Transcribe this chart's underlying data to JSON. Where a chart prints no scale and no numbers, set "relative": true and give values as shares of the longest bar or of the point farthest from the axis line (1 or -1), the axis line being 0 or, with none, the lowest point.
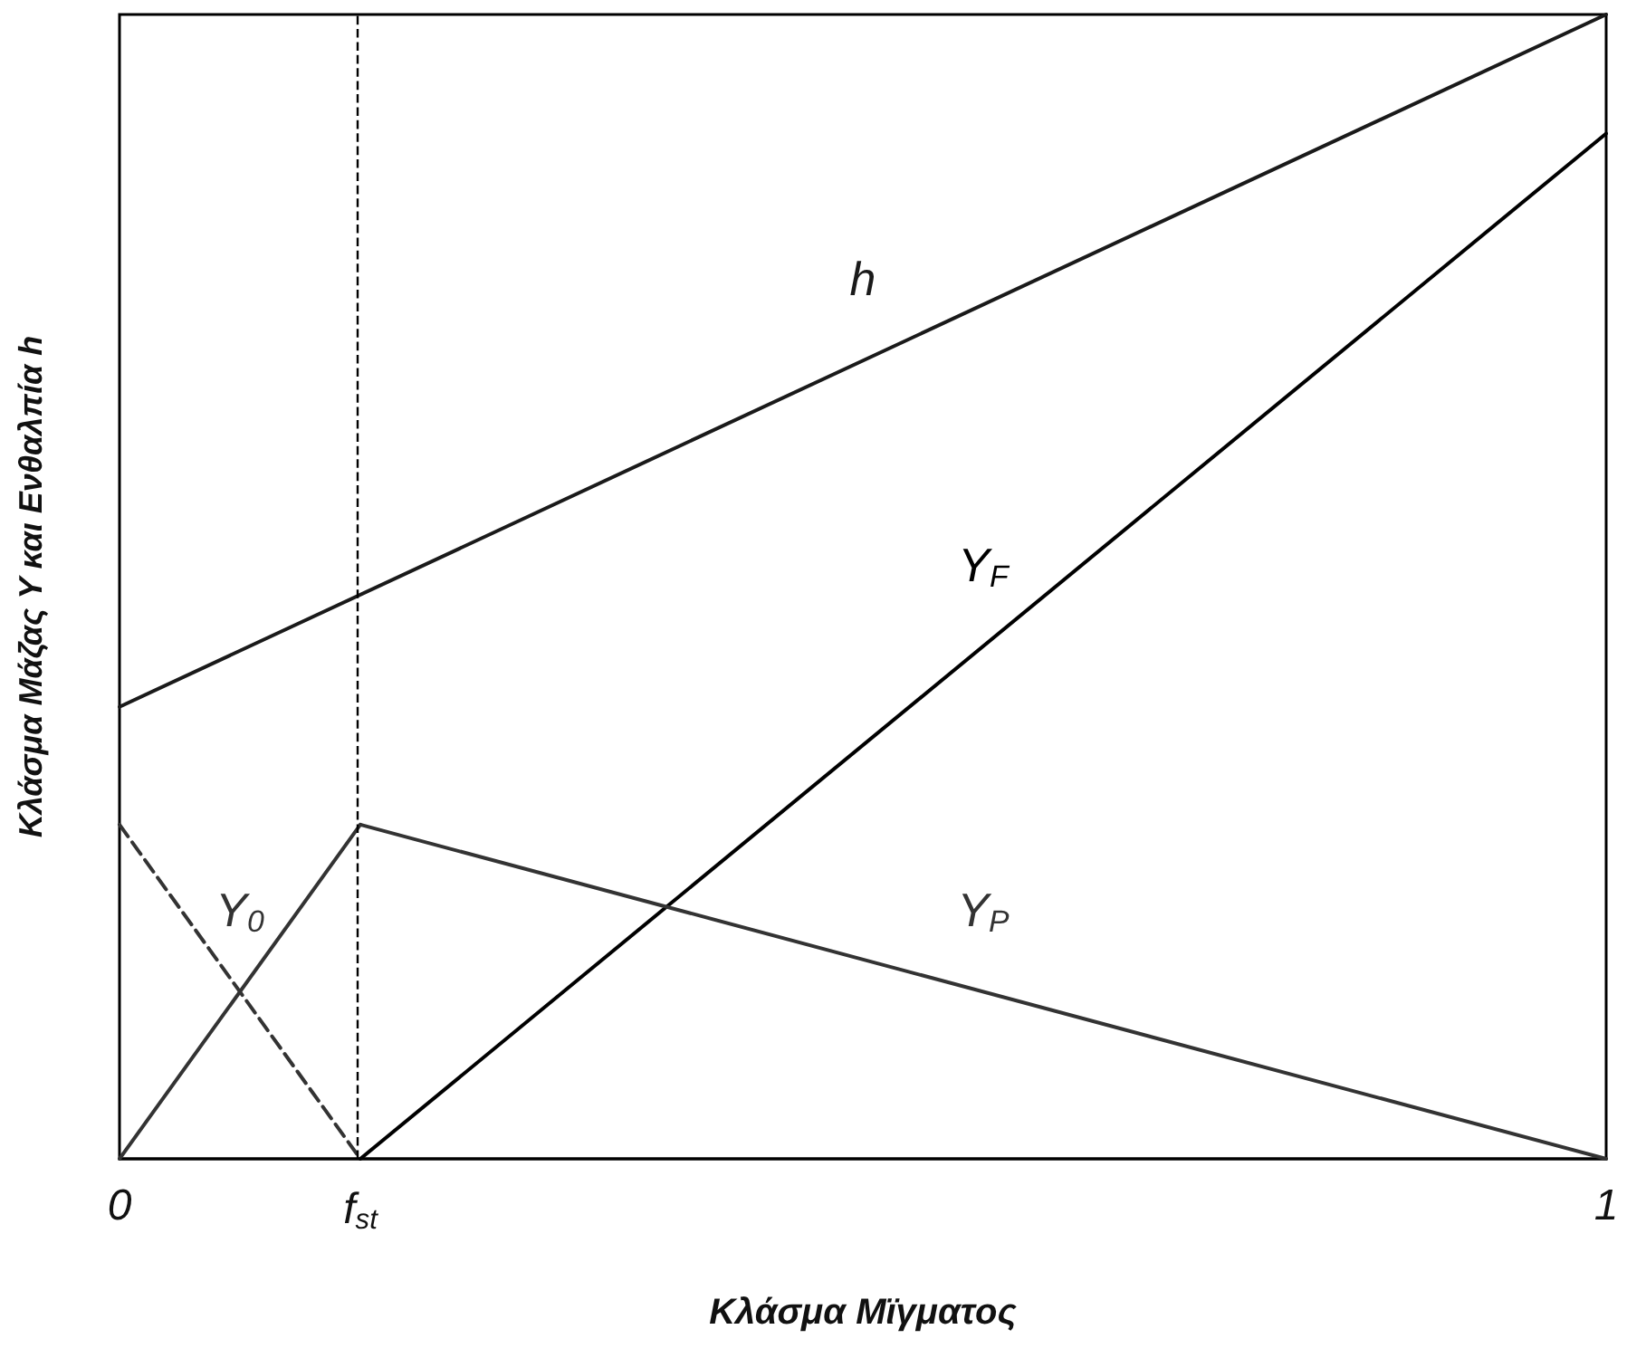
{
  "chart_data": {
    "type": "line",
    "relative": true,
    "xlabel": "Κλάσμα Μϊγματος",
    "ylabel": "Κλάσμα Μάζας Y και Ενθαλπία h",
    "xlim": [
      0,
      1
    ],
    "xticks": [
      0,
      {
        "value": 0.162,
        "label": "f$_{st}$"
      },
      1
    ],
    "series": [
      {
        "name": "h",
        "color": "#1a1a1a",
        "x": [
          0,
          1
        ],
        "values": [
          0.395,
          1
        ]
      },
      {
        "name": "Y$_{F}$",
        "color": "#000000",
        "x": [
          0.162,
          1
        ],
        "values": [
          0,
          0.896
        ]
      },
      {
        "name": "Y$_{P}$",
        "color": "#333333",
        "x": [
          0.162,
          1
        ],
        "values": [
          0.292,
          0
        ]
      },
      {
        "name": "Y$_{0}$",
        "color": "#333333",
        "x": [
          0,
          0.162
        ],
        "values": [
          0,
          0.292
        ]
      },
      {
        "color": "#333333",
        "x": [
          0,
          0.162
        ],
        "values": [
          0.292,
          0
        ],
        "line_style": "dashed"
      }
    ],
    "ref_lines": [
      {
        "axis": "x",
        "value": 0.162,
        "color": "#000000",
        "line_style": "dashed"
      }
    ],
    "line_style": "solid",
    "marker": "none",
    "grid": false,
    "legend": false
  }
}
